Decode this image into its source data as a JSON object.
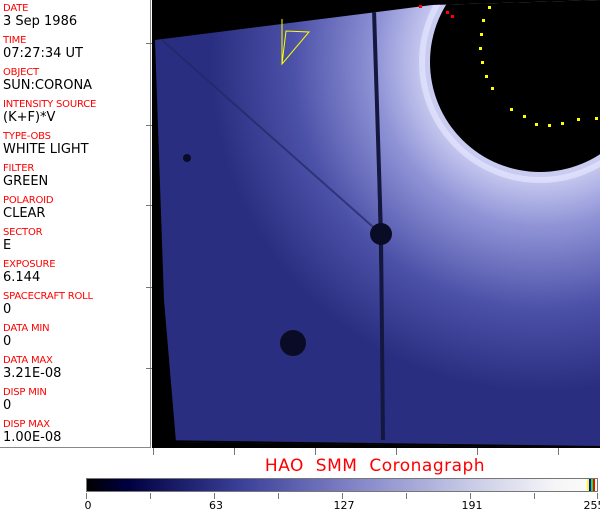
{
  "header_fields": [
    {
      "label": "DATE",
      "value": "3 Sep 1986"
    },
    {
      "label": "TIME",
      "value": "07:27:34 UT"
    },
    {
      "label": "OBJECT",
      "value": "SUN:CORONA"
    },
    {
      "label": "INTENSITY SOURCE",
      "value": "(K+F)*V"
    },
    {
      "label": "TYPE-OBS",
      "value": "WHITE LIGHT"
    },
    {
      "label": "FILTER",
      "value": "GREEN"
    },
    {
      "label": "POLAROID",
      "value": "CLEAR"
    },
    {
      "label": "SECTOR",
      "value": "E"
    },
    {
      "label": "EXPOSURE",
      "value": "6.144"
    },
    {
      "label": "SPACECRAFT ROLL",
      "value": "0"
    },
    {
      "label": "DATA MIN",
      "value": "0"
    },
    {
      "label": "DATA MAX",
      "value": "3.21E-08"
    },
    {
      "label": "DISP MIN",
      "value": "0"
    },
    {
      "label": "DISP MAX",
      "value": "1.00E-08"
    }
  ],
  "title": "HAO  SMM Coronagraph",
  "colorbar": {
    "labels": [
      "0",
      "63",
      "127",
      "191",
      "255"
    ],
    "min": 0,
    "max": 255,
    "end_stripes": [
      "#ffff00",
      "#0000ff",
      "#00ff00",
      "#ff0000"
    ]
  },
  "colors": {
    "label": "#ff0000",
    "overlay_red": "#ff0000",
    "overlay_yellow": "#ffff00",
    "background": "#000000"
  }
}
